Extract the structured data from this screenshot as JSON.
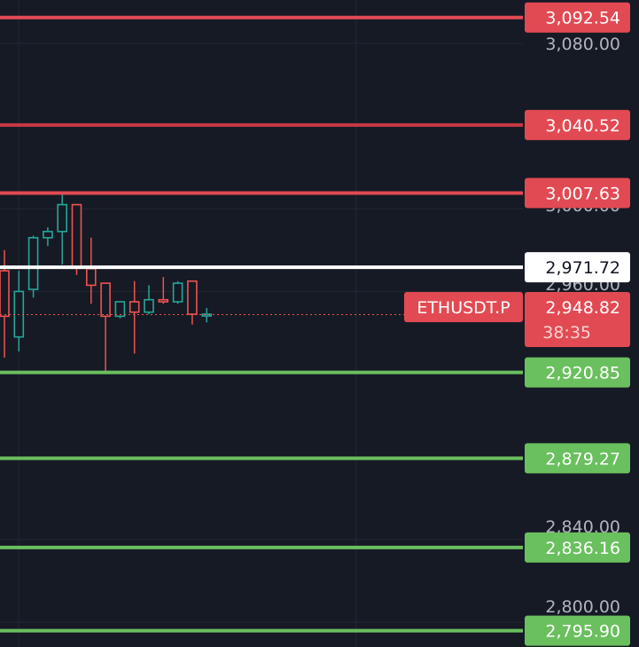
{
  "chart_data": {
    "type": "candlestick",
    "symbol": "ETHUSDT.P",
    "last_price": "2,948.82",
    "countdown": "38:35",
    "price_axis_labels": [
      "3,080.00",
      "3,000.00",
      "2,960.00",
      "2,840.00",
      "2,800.00"
    ],
    "resistance_levels": [
      "3,092.54",
      "3,040.52",
      "3,007.63"
    ],
    "reference_level": "2,971.72",
    "support_levels": [
      "2,920.85",
      "2,879.27",
      "2,836.16",
      "2,795.90"
    ],
    "ylim": [
      2788,
      3101
    ],
    "candles": [
      {
        "open": 2970,
        "high": 2980,
        "low": 2928,
        "close": 2948
      },
      {
        "open": 2938,
        "high": 2970,
        "low": 2931,
        "close": 2960
      },
      {
        "open": 2961,
        "high": 2987,
        "low": 2957,
        "close": 2986
      },
      {
        "open": 2986,
        "high": 2991,
        "low": 2982,
        "close": 2989
      },
      {
        "open": 2989,
        "high": 3008,
        "low": 2973,
        "close": 3002
      },
      {
        "open": 3002,
        "high": 3002,
        "low": 2968,
        "close": 2972
      },
      {
        "open": 2971,
        "high": 2986,
        "low": 2954,
        "close": 2963
      },
      {
        "open": 2964,
        "high": 2964,
        "low": 2921,
        "close": 2948
      },
      {
        "open": 2948,
        "high": 2955,
        "low": 2947,
        "close": 2955
      },
      {
        "open": 2955,
        "high": 2965,
        "low": 2930,
        "close": 2950
      },
      {
        "open": 2950,
        "high": 2963,
        "low": 2949,
        "close": 2956
      },
      {
        "open": 2956,
        "high": 2967,
        "low": 2954,
        "close": 2955
      },
      {
        "open": 2955,
        "high": 2965,
        "low": 2954,
        "close": 2964
      },
      {
        "open": 2965,
        "high": 2965,
        "low": 2944,
        "close": 2949
      },
      {
        "open": 2949,
        "high": 2952,
        "low": 2945,
        "close": 2949
      }
    ],
    "colors": {
      "background": "#161a25",
      "grid": "#232733",
      "bull": "#26a69a",
      "bear": "#ef5350",
      "resistance": "#e24a53",
      "resistance_dark": "#c73a44",
      "support": "#6abf5e",
      "reference": "#ffffff",
      "axis_text": "#b2b5be"
    }
  }
}
